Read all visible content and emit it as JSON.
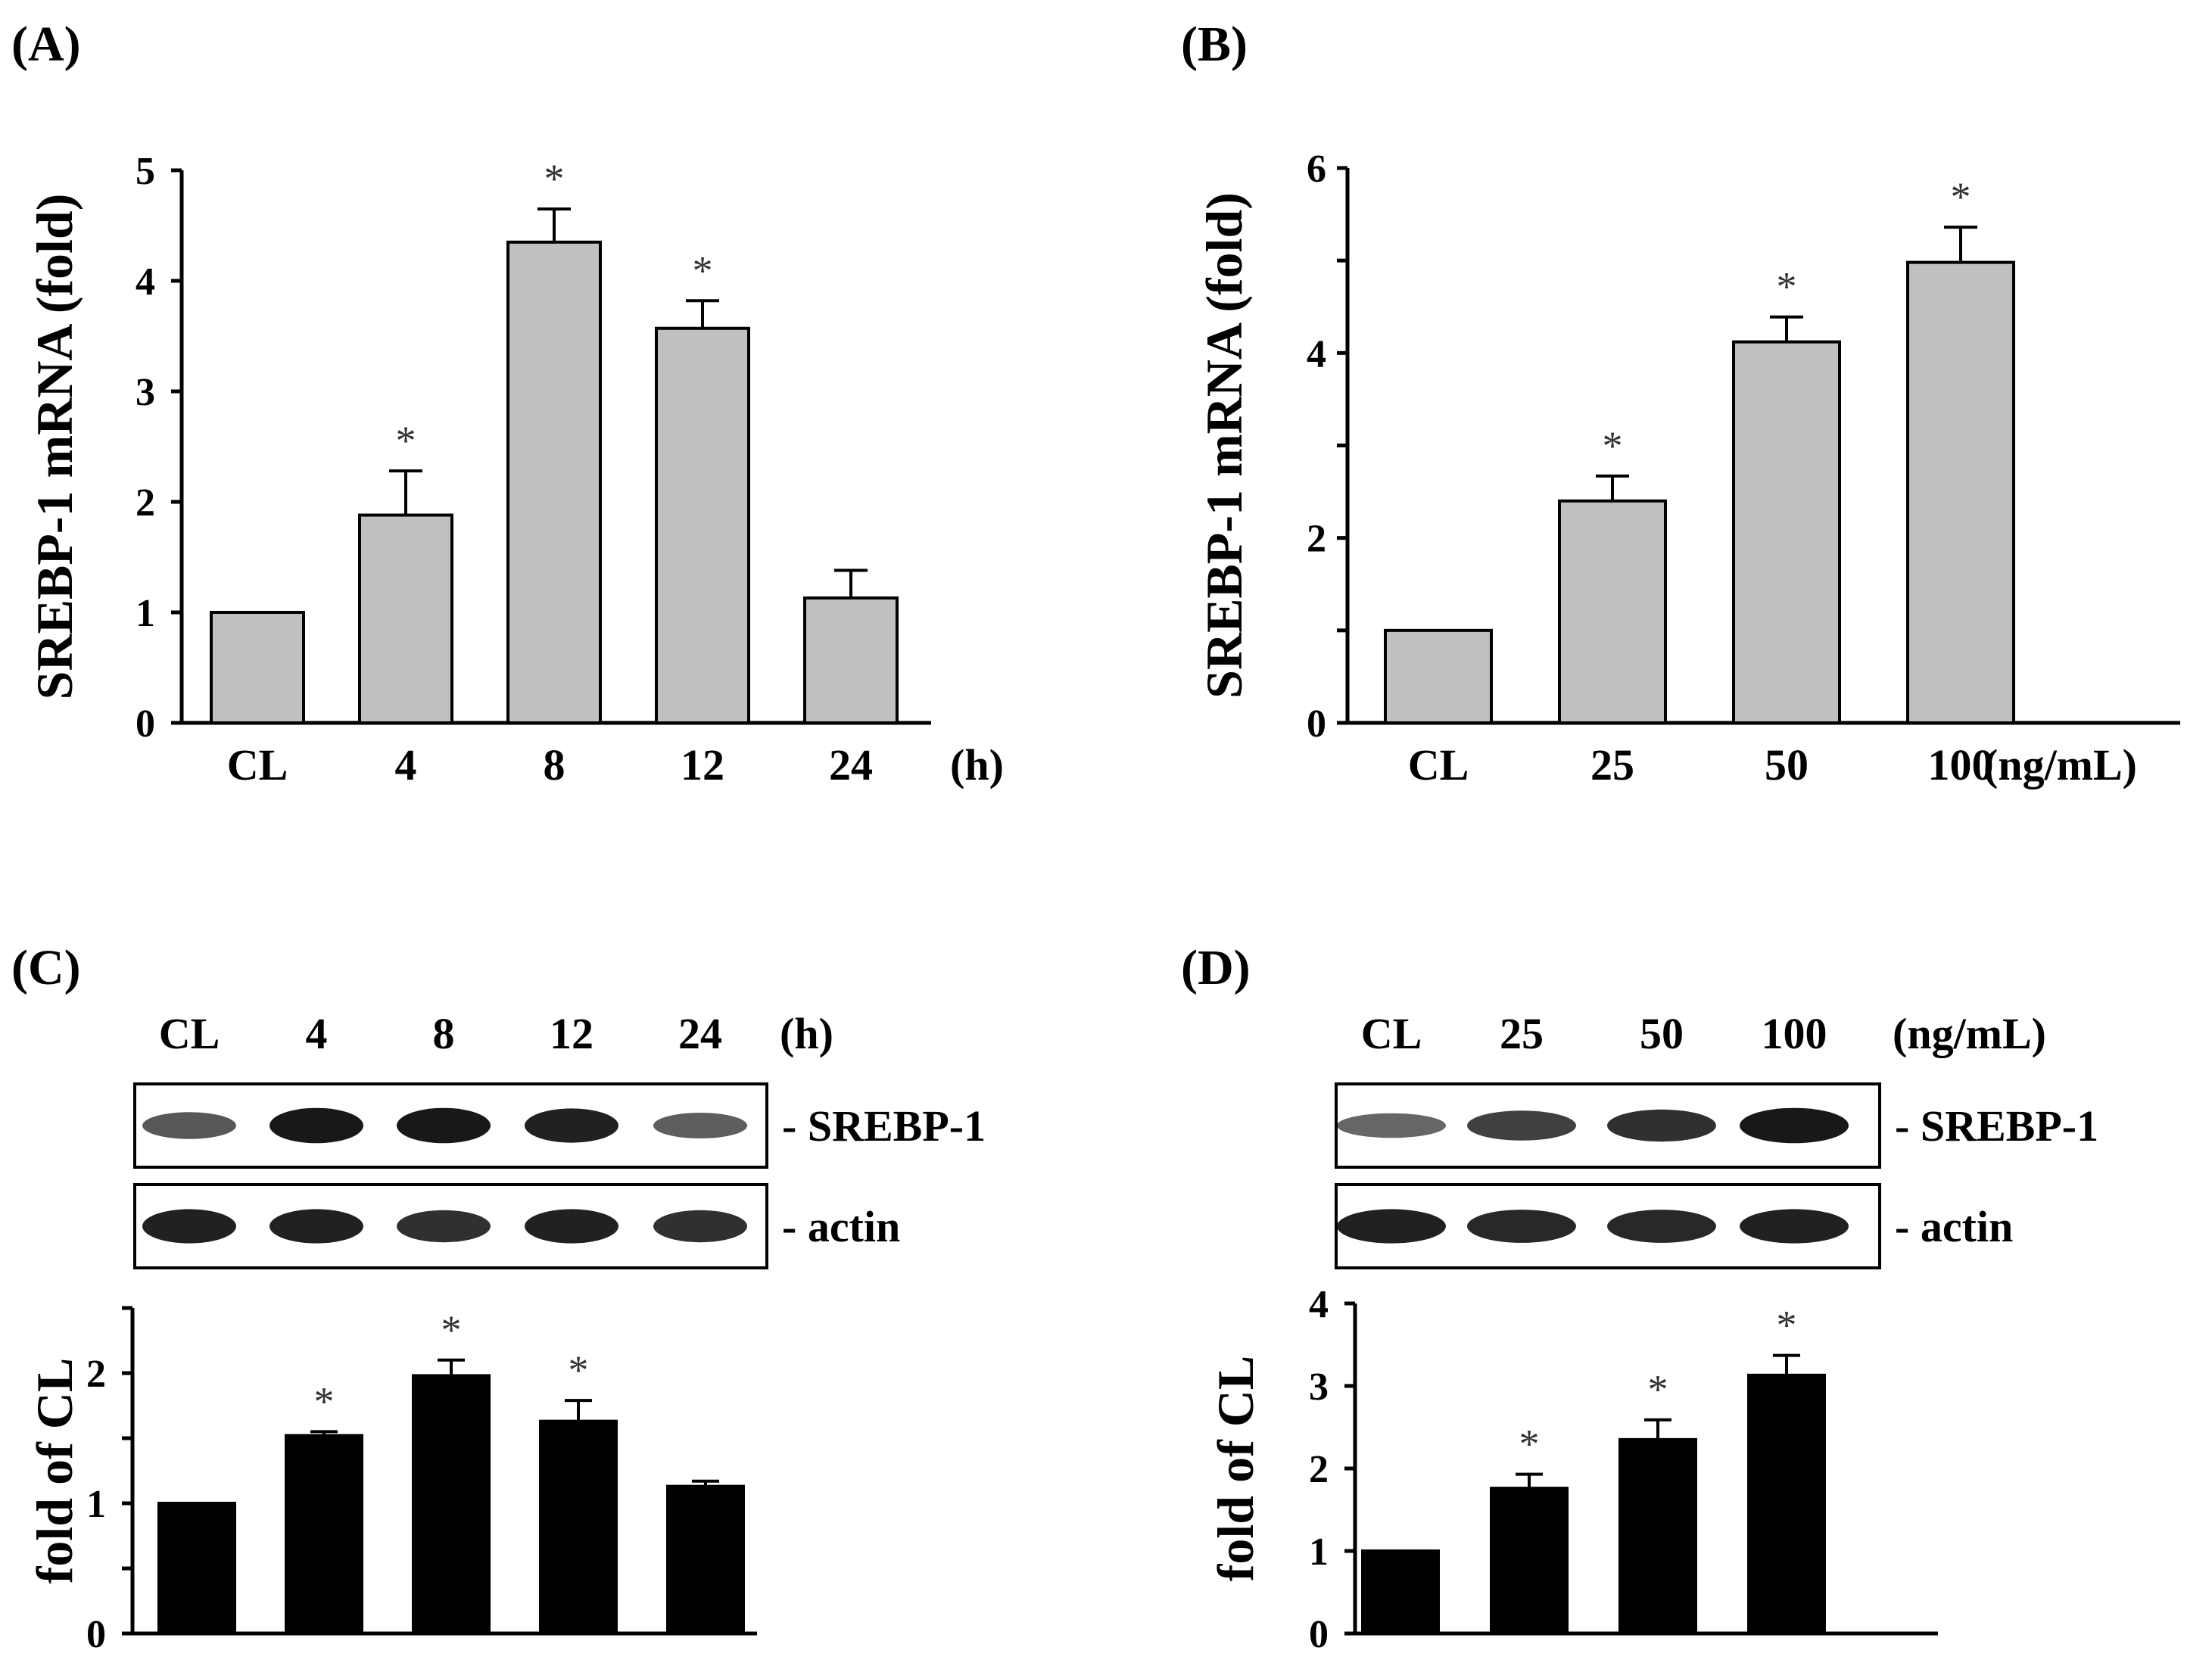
{
  "panels": {
    "A": {
      "label": "(A)"
    },
    "B": {
      "label": "(B)"
    },
    "C": {
      "label": "(C)",
      "lane_labels": [
        "CL",
        "4",
        "8",
        "12",
        "24"
      ],
      "unit": "(h)",
      "band_labels": [
        "- SREBP-1",
        "- actin"
      ],
      "srebp_intensity": [
        0.55,
        0.95,
        0.95,
        0.9,
        0.5
      ],
      "actin_intensity": [
        0.9,
        0.9,
        0.8,
        0.9,
        0.8
      ]
    },
    "D": {
      "label": "(D)",
      "lane_labels": [
        "CL",
        "25",
        "50",
        "100"
      ],
      "unit": "(ng/mL)",
      "band_labels": [
        "- SREBP-1",
        "- actin"
      ],
      "srebp_intensity": [
        0.45,
        0.7,
        0.8,
        0.95
      ],
      "actin_intensity": [
        0.9,
        0.85,
        0.85,
        0.9
      ]
    }
  },
  "colors": {
    "gray_bar": "#c0c0c0",
    "black_bar": "#000000",
    "star": "#333333"
  },
  "chart_data": [
    {
      "id": "A",
      "type": "bar",
      "title": "",
      "categories": [
        "CL",
        "4",
        "8",
        "12",
        "24"
      ],
      "unit_label": "(h)",
      "values": [
        1.0,
        1.88,
        4.35,
        3.57,
        1.13
      ],
      "errors": [
        0,
        0.4,
        0.3,
        0.25,
        0.25
      ],
      "significant": [
        false,
        true,
        true,
        true,
        false
      ],
      "ylabel": "SREBP-1 mRNA (fold)",
      "xlabel": "",
      "ylim": [
        0,
        5
      ],
      "yticks": [
        0,
        1,
        2,
        3,
        4,
        5
      ],
      "bar_color": "gray"
    },
    {
      "id": "B",
      "type": "bar",
      "title": "",
      "categories": [
        "CL",
        "25",
        "50",
        "100"
      ],
      "unit_label": "(ng/mL)",
      "values": [
        1.0,
        2.4,
        4.12,
        4.98
      ],
      "errors": [
        0,
        0.27,
        0.27,
        0.38
      ],
      "significant": [
        false,
        true,
        true,
        true
      ],
      "ylabel": "SREBP-1 mRNA (fold)",
      "xlabel": "",
      "ylim": [
        0,
        6
      ],
      "yticks": [
        0,
        2,
        4,
        6
      ],
      "minor_yticks": [
        1,
        3,
        5
      ],
      "bar_color": "gray"
    },
    {
      "id": "C",
      "type": "bar",
      "title": "",
      "categories": [
        "CL",
        "4",
        "8",
        "12",
        "24"
      ],
      "values": [
        1.0,
        1.52,
        1.98,
        1.63,
        1.13
      ],
      "errors": [
        0,
        0.03,
        0.12,
        0.16,
        0.04
      ],
      "significant": [
        false,
        true,
        true,
        true,
        false
      ],
      "ylabel": "fold of CL",
      "xlabel": "",
      "ylim": [
        0,
        2.5
      ],
      "yticks": [
        0,
        1,
        2
      ],
      "minor_yticks": [
        0.5,
        1.5,
        2.5
      ],
      "bar_color": "black"
    },
    {
      "id": "D",
      "type": "bar",
      "title": "",
      "categories": [
        "CL",
        "25",
        "50",
        "100"
      ],
      "values": [
        1.0,
        1.76,
        2.35,
        3.13
      ],
      "errors": [
        0,
        0.17,
        0.24,
        0.24
      ],
      "significant": [
        false,
        true,
        true,
        true
      ],
      "ylabel": "fold of CL",
      "xlabel": "",
      "ylim": [
        0,
        4
      ],
      "yticks": [
        0,
        1,
        2,
        3,
        4
      ],
      "bar_color": "black"
    }
  ]
}
